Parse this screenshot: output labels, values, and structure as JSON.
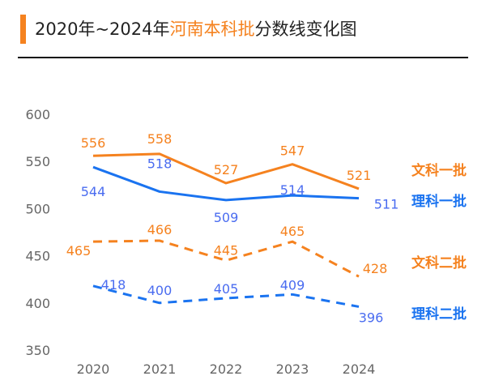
{
  "title": {
    "prefix": "2020年~2024年",
    "highlight": "河南本科批",
    "suffix": "分数线变化图"
  },
  "colors": {
    "orange": "#f5821f",
    "blue": "#1a73f0",
    "blue_label": "#4a6cf0",
    "axis_text": "#666666"
  },
  "chart_data": {
    "type": "line",
    "categories": [
      "2020",
      "2021",
      "2022",
      "2023",
      "2024"
    ],
    "ylim": [
      350,
      600
    ],
    "yticks": [
      350,
      400,
      450,
      500,
      550,
      600
    ],
    "grid": false,
    "legend": "right (labels at line ends)",
    "data_labels": true,
    "series": [
      {
        "name": "文科一批",
        "values": [
          556,
          558,
          527,
          547,
          521
        ],
        "color": "#f5821f",
        "style": "solid"
      },
      {
        "name": "理科一批",
        "values": [
          544,
          518,
          509,
          514,
          511
        ],
        "color": "#1a73f0",
        "style": "solid"
      },
      {
        "name": "文科二批",
        "values": [
          465,
          466,
          445,
          465,
          428
        ],
        "color": "#f5821f",
        "style": "dashed"
      },
      {
        "name": "理科二批",
        "values": [
          418,
          400,
          405,
          409,
          396
        ],
        "color": "#1a73f0",
        "style": "dashed"
      }
    ]
  }
}
